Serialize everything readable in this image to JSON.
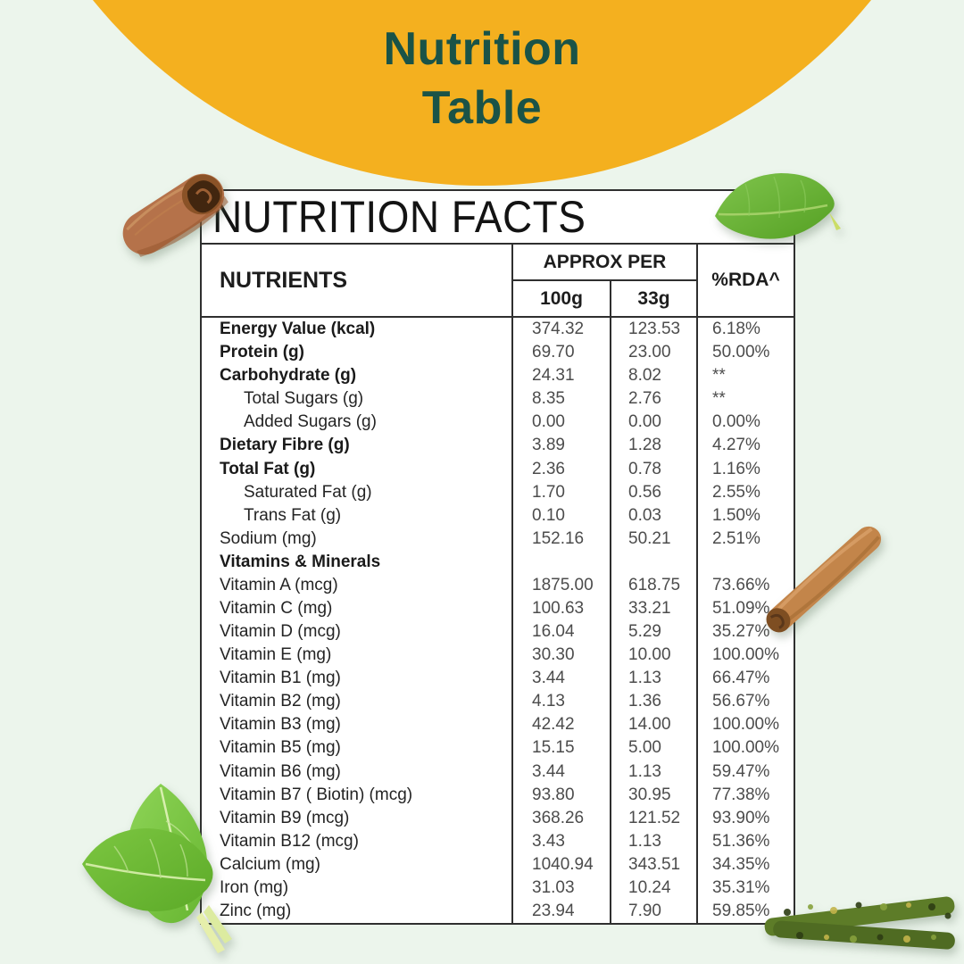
{
  "page": {
    "background_color": "#ecf5ec"
  },
  "banner": {
    "line1": "Nutrition",
    "line2": "Table",
    "background_color": "#f4b01f",
    "text_color": "#1a5347"
  },
  "table": {
    "title": "NUTRITION FACTS",
    "border_color": "#2f2f2f",
    "header": {
      "nutrients": "NUTRIENTS",
      "approx_per": "APPROX PER",
      "col_100g": "100g",
      "col_33g": "33g",
      "rda": "%RDA^"
    },
    "rows": [
      {
        "label": "Energy Value (kcal)",
        "bold": true,
        "indent": false,
        "v100": "374.32",
        "v33": "123.53",
        "rda": "6.18%"
      },
      {
        "label": "Protein (g)",
        "bold": true,
        "indent": false,
        "v100": "69.70",
        "v33": "23.00",
        "rda": "50.00%"
      },
      {
        "label": "Carbohydrate (g)",
        "bold": true,
        "indent": false,
        "v100": "24.31",
        "v33": "8.02",
        "rda": "**"
      },
      {
        "label": "Total Sugars (g)",
        "bold": false,
        "indent": true,
        "v100": "8.35",
        "v33": "2.76",
        "rda": "**"
      },
      {
        "label": "Added Sugars (g)",
        "bold": false,
        "indent": true,
        "v100": "0.00",
        "v33": "0.00",
        "rda": "0.00%"
      },
      {
        "label": "Dietary Fibre (g)",
        "bold": true,
        "indent": false,
        "v100": "3.89",
        "v33": "1.28",
        "rda": "4.27%"
      },
      {
        "label": "Total Fat (g)",
        "bold": true,
        "indent": false,
        "v100": "2.36",
        "v33": "0.78",
        "rda": "1.16%"
      },
      {
        "label": "Saturated Fat (g)",
        "bold": false,
        "indent": true,
        "v100": "1.70",
        "v33": "0.56",
        "rda": "2.55%"
      },
      {
        "label": "Trans Fat (g)",
        "bold": false,
        "indent": true,
        "v100": "0.10",
        "v33": "0.03",
        "rda": "1.50%"
      },
      {
        "label": "Sodium (mg)",
        "bold": false,
        "indent": false,
        "v100": "152.16",
        "v33": "50.21",
        "rda": "2.51%"
      },
      {
        "label": "Vitamins & Minerals",
        "bold": true,
        "indent": false,
        "v100": "",
        "v33": "",
        "rda": ""
      },
      {
        "label": "Vitamin A (mcg)",
        "bold": false,
        "indent": false,
        "v100": "1875.00",
        "v33": "618.75",
        "rda": "73.66%"
      },
      {
        "label": "Vitamin C (mg)",
        "bold": false,
        "indent": false,
        "v100": "100.63",
        "v33": "33.21",
        "rda": "51.09%"
      },
      {
        "label": "Vitamin D (mcg)",
        "bold": false,
        "indent": false,
        "v100": "16.04",
        "v33": "5.29",
        "rda": "35.27%"
      },
      {
        "label": "Vitamin E (mg)",
        "bold": false,
        "indent": false,
        "v100": "30.30",
        "v33": "10.00",
        "rda": "100.00%"
      },
      {
        "label": "Vitamin B1 (mg)",
        "bold": false,
        "indent": false,
        "v100": "3.44",
        "v33": "1.13",
        "rda": "66.47%"
      },
      {
        "label": "Vitamin B2 (mg)",
        "bold": false,
        "indent": false,
        "v100": "4.13",
        "v33": "1.36",
        "rda": "56.67%"
      },
      {
        "label": "Vitamin B3 (mg)",
        "bold": false,
        "indent": false,
        "v100": "42.42",
        "v33": "14.00",
        "rda": "100.00%"
      },
      {
        "label": "Vitamin B5 (mg)",
        "bold": false,
        "indent": false,
        "v100": "15.15",
        "v33": "5.00",
        "rda": "100.00%"
      },
      {
        "label": "Vitamin B6 (mg)",
        "bold": false,
        "indent": false,
        "v100": "3.44",
        "v33": "1.13",
        "rda": "59.47%"
      },
      {
        "label": "Vitamin B7 ( Biotin) (mcg)",
        "bold": false,
        "indent": false,
        "v100": "93.80",
        "v33": "30.95",
        "rda": "77.38%"
      },
      {
        "label": "Vitamin B9 (mcg)",
        "bold": false,
        "indent": false,
        "v100": "368.26",
        "v33": "121.52",
        "rda": "93.90%"
      },
      {
        "label": "Vitamin B12 (mcg)",
        "bold": false,
        "indent": false,
        "v100": "3.43",
        "v33": "1.13",
        "rda": "51.36%"
      },
      {
        "label": "Calcium (mg)",
        "bold": false,
        "indent": false,
        "v100": "1040.94",
        "v33": "343.51",
        "rda": "34.35%"
      },
      {
        "label": "Iron (mg)",
        "bold": false,
        "indent": false,
        "v100": "31.03",
        "v33": "10.24",
        "rda": "35.31%"
      },
      {
        "label": "Zinc (mg)",
        "bold": false,
        "indent": false,
        "v100": "23.94",
        "v33": "7.90",
        "rda": "59.85%"
      }
    ]
  },
  "decorations": {
    "top_left": "cinnamon-roll",
    "top_right": "bay-leaf",
    "middle_right": "cinnamon-stick",
    "bottom_left": "mint-leaves",
    "bottom_right": "dried-green-stems"
  }
}
